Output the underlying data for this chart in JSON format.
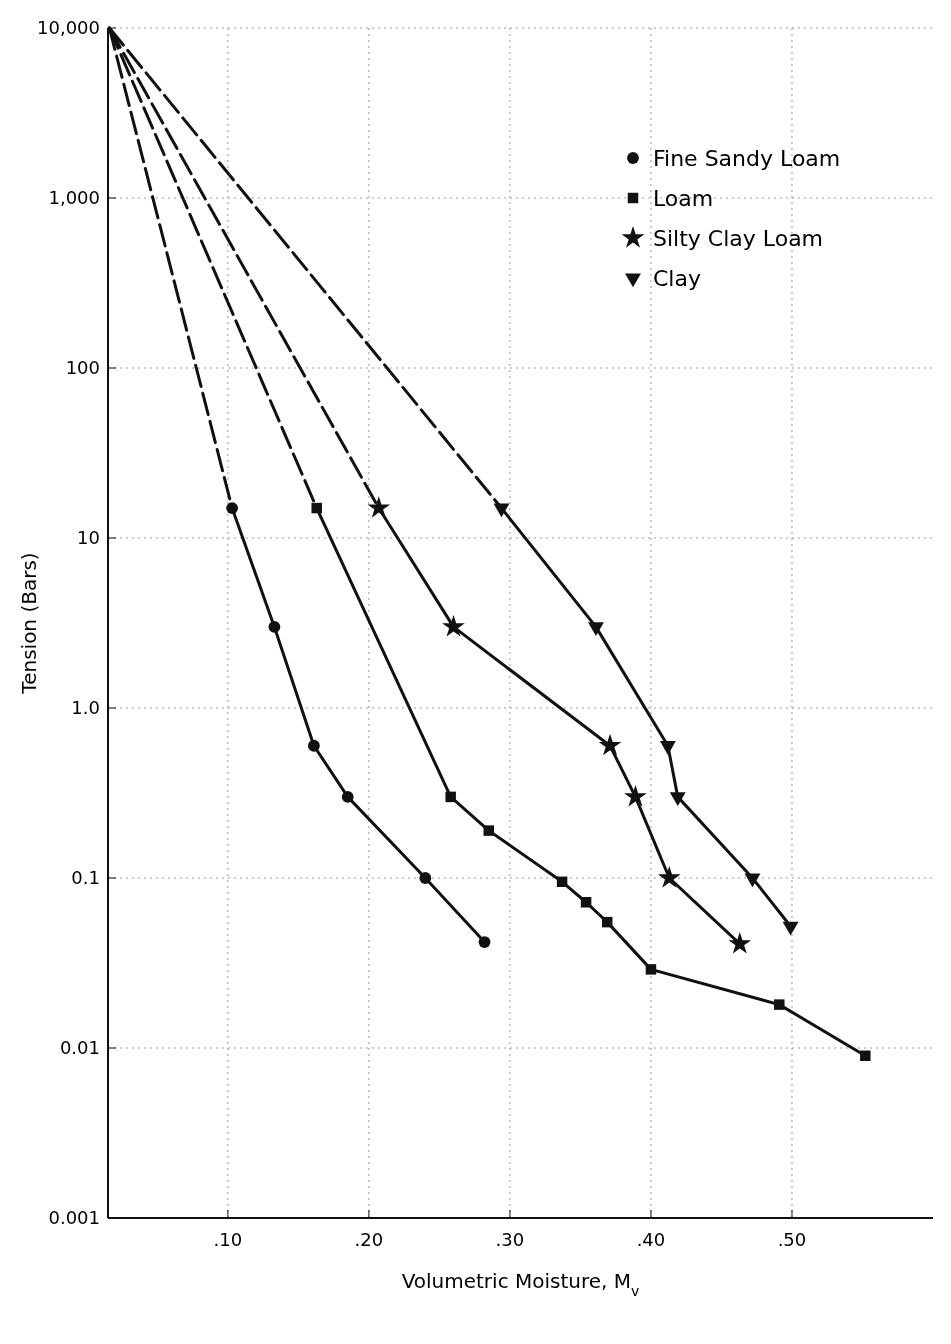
{
  "chart_data": {
    "type": "line",
    "xlabel": "Volumetric Moisture, M$_{v}$",
    "ylabel": "Tension (Bars)",
    "log": "y",
    "grid": true,
    "legend": "top right",
    "xlim": [
      0.015,
      0.6
    ],
    "ylim": [
      0.001,
      10000
    ],
    "xticks": [
      {
        "value": 0.1,
        "label": ".10"
      },
      {
        "value": 0.2,
        "label": ".20"
      },
      {
        "value": 0.3,
        "label": ".30"
      },
      {
        "value": 0.4,
        "label": ".40"
      },
      {
        "value": 0.5,
        "label": ".50"
      }
    ],
    "yticks": [
      {
        "value": 0.001,
        "label": "0.001"
      },
      {
        "value": 0.01,
        "label": "0.01"
      },
      {
        "value": 0.1,
        "label": "0.1"
      },
      {
        "value": 1,
        "label": "1.0"
      },
      {
        "value": 10,
        "label": "10"
      },
      {
        "value": 100,
        "label": "100"
      },
      {
        "value": 1000,
        "label": "1,000"
      },
      {
        "value": 10000,
        "label": "10,000"
      }
    ],
    "series": [
      {
        "name": "Fine Sandy Loam",
        "color": "#111111",
        "marker": "circle",
        "line_style": "solid",
        "x": [
          0.103,
          0.133,
          0.161,
          0.185,
          0.24,
          0.282
        ],
        "values": [
          15,
          3,
          0.6,
          0.3,
          0.1,
          0.042
        ]
      },
      {
        "name": "Loam",
        "color": "#111111",
        "marker": "square",
        "line_style": "solid",
        "x": [
          0.163,
          0.258,
          0.285,
          0.337,
          0.354,
          0.369,
          0.4,
          0.491,
          0.552
        ],
        "values": [
          15,
          0.3,
          0.19,
          0.095,
          0.072,
          0.055,
          0.029,
          0.018,
          0.009
        ]
      },
      {
        "name": "Silty Clay Loam",
        "color": "#111111",
        "marker": "star",
        "line_style": "solid",
        "x": [
          0.207,
          0.26,
          0.371,
          0.389,
          0.413,
          0.463
        ],
        "values": [
          15,
          3,
          0.6,
          0.3,
          0.1,
          0.041
        ]
      },
      {
        "name": "Clay",
        "color": "#111111",
        "marker": "triangle",
        "line_style": "solid",
        "x": [
          0.294,
          0.361,
          0.412,
          0.419,
          0.472,
          0.499
        ],
        "values": [
          15,
          3,
          0.6,
          0.3,
          0.1,
          0.052
        ]
      },
      {
        "color": "#111111",
        "marker": "none",
        "line_style": "dashed",
        "x": [
          0.016,
          0.103
        ],
        "values": [
          10000,
          15
        ]
      },
      {
        "color": "#111111",
        "marker": "none",
        "line_style": "dashed",
        "x": [
          0.016,
          0.163
        ],
        "values": [
          10000,
          15
        ]
      },
      {
        "color": "#111111",
        "marker": "none",
        "line_style": "dashed",
        "x": [
          0.016,
          0.207
        ],
        "values": [
          10000,
          15
        ]
      },
      {
        "color": "#111111",
        "marker": "none",
        "line_style": "dashed",
        "x": [
          0.016,
          0.294
        ],
        "values": [
          10000,
          15
        ]
      }
    ]
  }
}
